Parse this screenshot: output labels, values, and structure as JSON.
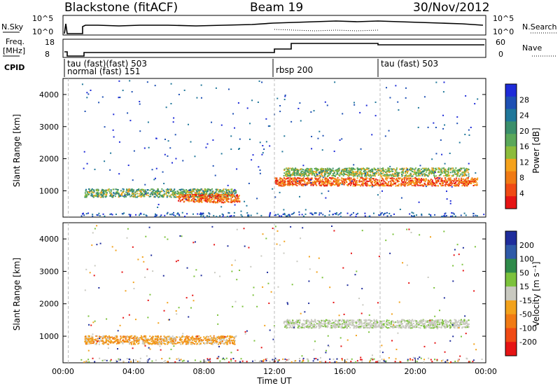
{
  "header": {
    "station": "Blackstone (fitACF)",
    "beam": "Beam 19",
    "date": "30/Nov/2012"
  },
  "panels": {
    "nsky": {
      "label": "N.Sky",
      "ticks": [
        "10^5",
        "10^0"
      ],
      "right_label": "N.Search",
      "right_ticks": [
        "10^5",
        "10^0"
      ]
    },
    "freq": {
      "label_top": "Freq.",
      "label_bottom": "[MHz]",
      "ticks": [
        "18",
        "8"
      ],
      "right_label": "Nave",
      "right_ticks": [
        "60",
        "0"
      ]
    },
    "cpid": {
      "label": "CPID",
      "entries": [
        "tau (fast) 503",
        "normal (fast) 151",
        "rbsp 200",
        "tau (fast) 503"
      ],
      "overlap_text": "tau  (fast)(fast) 503",
      "overlap_text2": "normal (fast) 151"
    }
  },
  "chart_data": [
    {
      "type": "heatmap",
      "title": "Power",
      "ylabel": "Slant Range [km]",
      "xlabel": "",
      "y_ticks": [
        "1000",
        "2000",
        "3000",
        "4000"
      ],
      "ylim": [
        180,
        4500
      ],
      "colorbar": {
        "label": "Power [dB]",
        "ticks": [
          "4",
          "8",
          "12",
          "16",
          "20",
          "24",
          "28"
        ],
        "colors": [
          "#1e2bd8",
          "#1e50b4",
          "#20779a",
          "#3b8f6b",
          "#5aa85a",
          "#8cbc3c",
          "#f5a21c",
          "#f07a14",
          "#f04a14",
          "#e61414"
        ]
      },
      "bands": [
        {
          "start_hr": 1.2,
          "end_hr": 9.8,
          "range_km": 950,
          "level": "green-yellow"
        },
        {
          "start_hr": 6.5,
          "end_hr": 10.0,
          "range_km": 780,
          "level": "orange-red"
        },
        {
          "start_hr": 12.0,
          "end_hr": 23.5,
          "range_km": 1300,
          "level": "red"
        },
        {
          "start_hr": 12.5,
          "end_hr": 23.0,
          "range_km": 1600,
          "level": "yellow-green"
        }
      ]
    },
    {
      "type": "heatmap",
      "title": "Velocity",
      "ylabel": "Slant Range [km]",
      "xlabel": "Time UT",
      "y_ticks": [
        "1000",
        "2000",
        "3000",
        "4000"
      ],
      "x_ticks": [
        "00:00",
        "04:00",
        "08:00",
        "12:00",
        "16:00",
        "20:00",
        "00:00"
      ],
      "ylim": [
        180,
        4500
      ],
      "colorbar": {
        "label": "Velocity [m s⁻¹]",
        "ticks": [
          "200",
          "100",
          "50",
          "15",
          "-15",
          "-50",
          "-100",
          "-200"
        ],
        "colors": [
          "#1f2d9c",
          "#2f5aa8",
          "#2f8a4a",
          "#7cc23c",
          "#c9c9c0",
          "#f2a21c",
          "#f07a14",
          "#f04a14",
          "#e61414"
        ]
      },
      "bands": [
        {
          "start_hr": 1.2,
          "end_hr": 9.8,
          "range_km": 900,
          "level": "orange"
        },
        {
          "start_hr": 12.5,
          "end_hr": 23.0,
          "range_km": 1400,
          "level": "grey"
        }
      ]
    }
  ]
}
